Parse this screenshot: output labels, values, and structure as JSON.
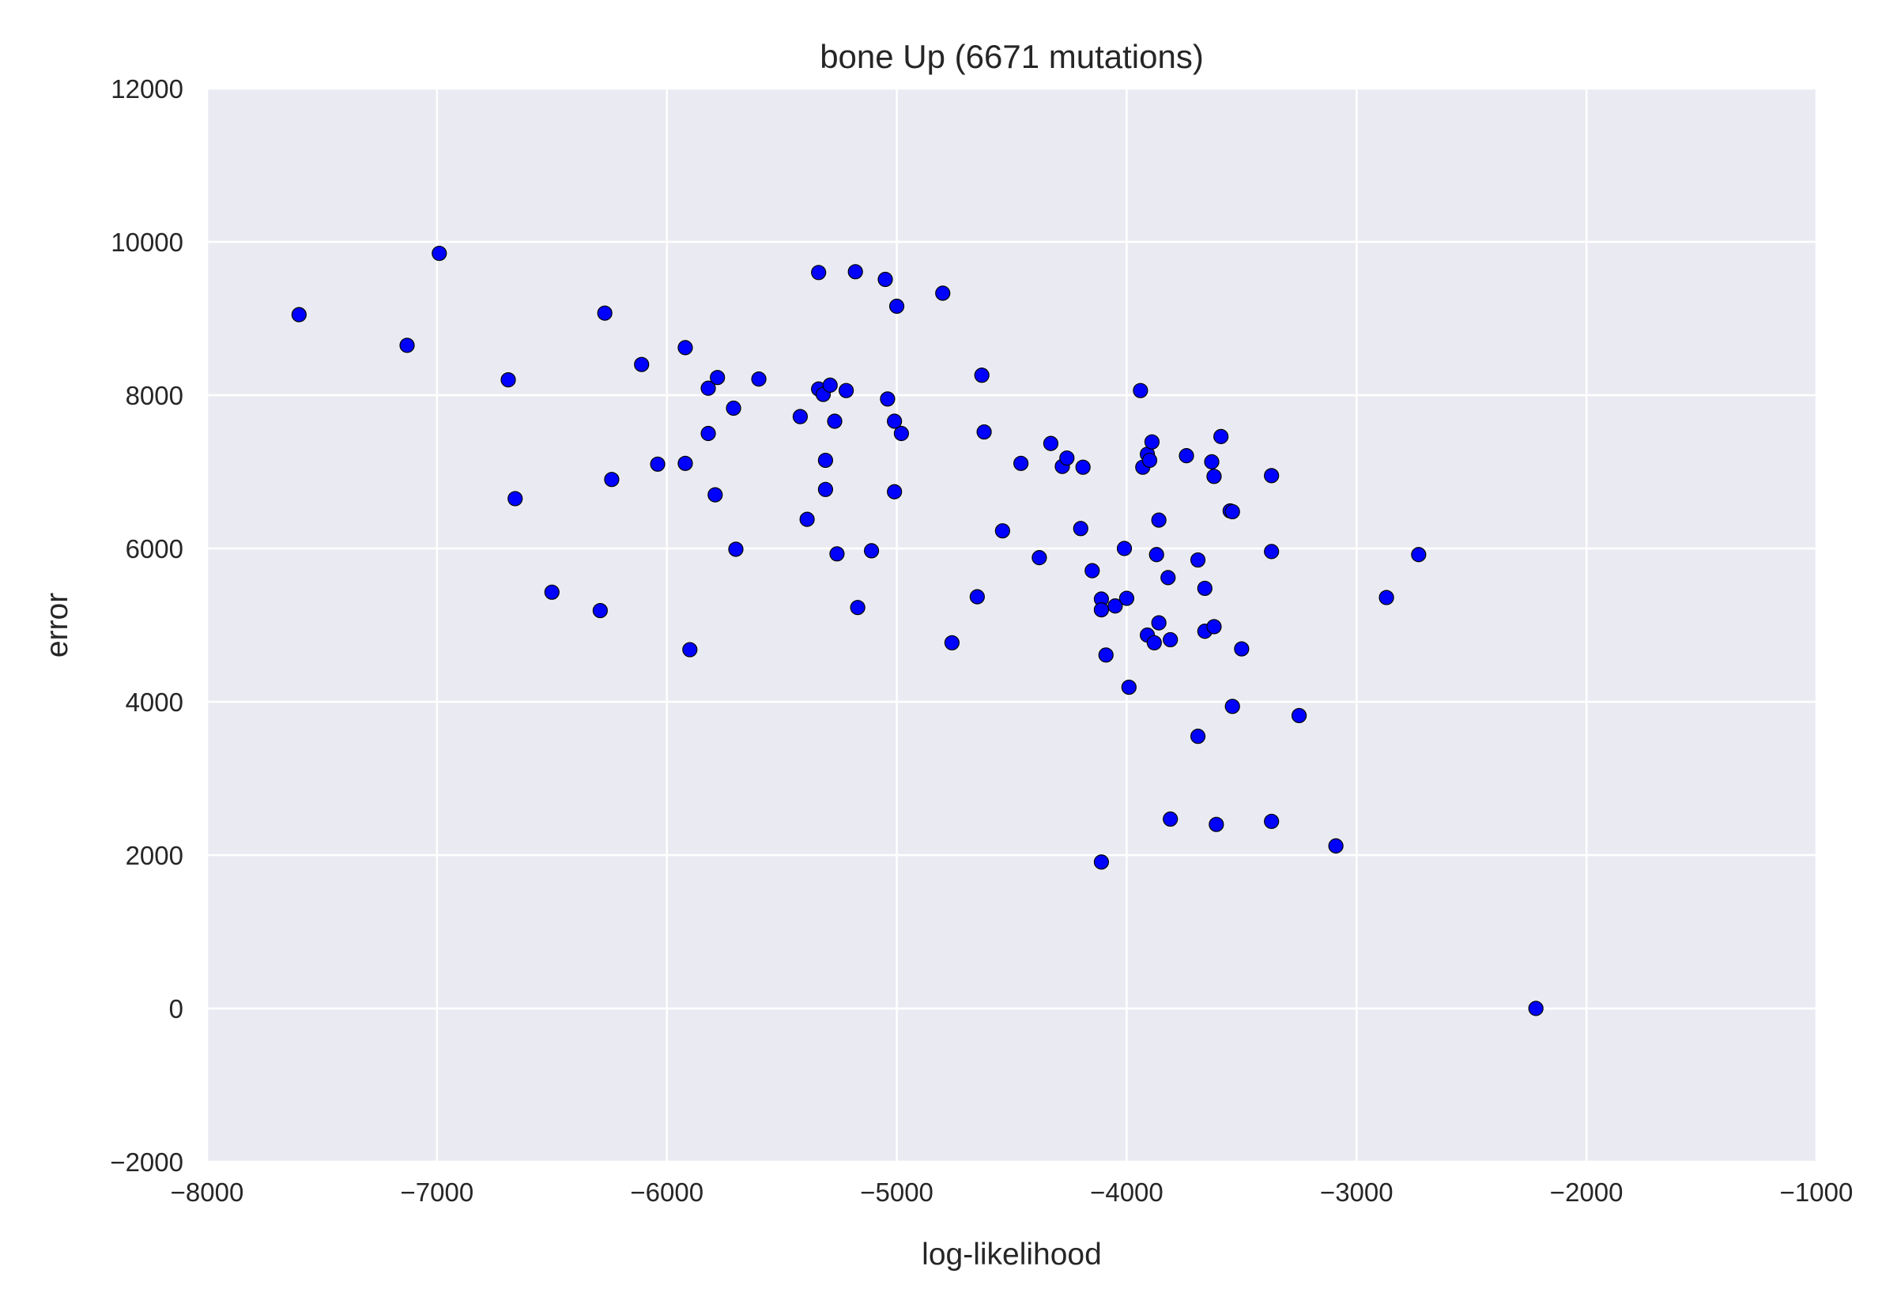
{
  "chart_data": {
    "type": "scatter",
    "title": "bone Up (6671 mutations)",
    "xlabel": "log-likelihood",
    "ylabel": "error",
    "xlim": [
      -8000,
      -1000
    ],
    "ylim": [
      -2000,
      12000
    ],
    "xticks": [
      -8000,
      -7000,
      -6000,
      -5000,
      -4000,
      -3000,
      -2000,
      -1000
    ],
    "yticks": [
      -2000,
      0,
      2000,
      4000,
      6000,
      8000,
      10000,
      12000
    ],
    "xtick_labels": [
      "−8000",
      "−7000",
      "−6000",
      "−5000",
      "−4000",
      "−3000",
      "−2000",
      "−1000"
    ],
    "ytick_labels": [
      "−2000",
      "0",
      "2000",
      "4000",
      "6000",
      "8000",
      "10000",
      "12000"
    ],
    "grid": true,
    "background_color": "#eaeaf2",
    "marker_color": "#0000ff",
    "points": [
      {
        "x": -7600,
        "y": 9050
      },
      {
        "x": -7130,
        "y": 8650
      },
      {
        "x": -6990,
        "y": 9850
      },
      {
        "x": -6690,
        "y": 8200
      },
      {
        "x": -6660,
        "y": 6650
      },
      {
        "x": -6500,
        "y": 5430
      },
      {
        "x": -6290,
        "y": 5190
      },
      {
        "x": -6270,
        "y": 9070
      },
      {
        "x": -6240,
        "y": 6900
      },
      {
        "x": -6110,
        "y": 8400
      },
      {
        "x": -6040,
        "y": 7100
      },
      {
        "x": -5920,
        "y": 8620
      },
      {
        "x": -5920,
        "y": 7110
      },
      {
        "x": -5900,
        "y": 4680
      },
      {
        "x": -5820,
        "y": 8090
      },
      {
        "x": -5820,
        "y": 7500
      },
      {
        "x": -5790,
        "y": 6700
      },
      {
        "x": -5780,
        "y": 8230
      },
      {
        "x": -5710,
        "y": 7830
      },
      {
        "x": -5700,
        "y": 5990
      },
      {
        "x": -5600,
        "y": 8210
      },
      {
        "x": -5420,
        "y": 7720
      },
      {
        "x": -5390,
        "y": 6380
      },
      {
        "x": -5340,
        "y": 9600
      },
      {
        "x": -5340,
        "y": 8080
      },
      {
        "x": -5320,
        "y": 8010
      },
      {
        "x": -5310,
        "y": 7150
      },
      {
        "x": -5310,
        "y": 6770
      },
      {
        "x": -5290,
        "y": 8130
      },
      {
        "x": -5270,
        "y": 7660
      },
      {
        "x": -5260,
        "y": 5930
      },
      {
        "x": -5220,
        "y": 8060
      },
      {
        "x": -5180,
        "y": 9610
      },
      {
        "x": -5170,
        "y": 5230
      },
      {
        "x": -5110,
        "y": 5970
      },
      {
        "x": -5050,
        "y": 9510
      },
      {
        "x": -5040,
        "y": 7950
      },
      {
        "x": -5010,
        "y": 7660
      },
      {
        "x": -5010,
        "y": 6740
      },
      {
        "x": -5000,
        "y": 9160
      },
      {
        "x": -4980,
        "y": 7500
      },
      {
        "x": -4800,
        "y": 9330
      },
      {
        "x": -4760,
        "y": 4770
      },
      {
        "x": -4650,
        "y": 5370
      },
      {
        "x": -4630,
        "y": 8260
      },
      {
        "x": -4620,
        "y": 7520
      },
      {
        "x": -4540,
        "y": 6230
      },
      {
        "x": -4460,
        "y": 7110
      },
      {
        "x": -4380,
        "y": 5880
      },
      {
        "x": -4330,
        "y": 7370
      },
      {
        "x": -4280,
        "y": 7070
      },
      {
        "x": -4260,
        "y": 7180
      },
      {
        "x": -4200,
        "y": 6260
      },
      {
        "x": -4190,
        "y": 7060
      },
      {
        "x": -4150,
        "y": 5710
      },
      {
        "x": -4110,
        "y": 5340
      },
      {
        "x": -4110,
        "y": 5200
      },
      {
        "x": -4110,
        "y": 1910
      },
      {
        "x": -4090,
        "y": 4610
      },
      {
        "x": -4050,
        "y": 5250
      },
      {
        "x": -4010,
        "y": 6000
      },
      {
        "x": -4000,
        "y": 5350
      },
      {
        "x": -3990,
        "y": 4190
      },
      {
        "x": -3940,
        "y": 8060
      },
      {
        "x": -3930,
        "y": 7060
      },
      {
        "x": -3910,
        "y": 7230
      },
      {
        "x": -3910,
        "y": 4870
      },
      {
        "x": -3900,
        "y": 7150
      },
      {
        "x": -3890,
        "y": 7390
      },
      {
        "x": -3880,
        "y": 4770
      },
      {
        "x": -3870,
        "y": 5920
      },
      {
        "x": -3860,
        "y": 6370
      },
      {
        "x": -3860,
        "y": 5030
      },
      {
        "x": -3820,
        "y": 5620
      },
      {
        "x": -3810,
        "y": 4810
      },
      {
        "x": -3810,
        "y": 2470
      },
      {
        "x": -3740,
        "y": 7210
      },
      {
        "x": -3690,
        "y": 5850
      },
      {
        "x": -3690,
        "y": 3550
      },
      {
        "x": -3660,
        "y": 5480
      },
      {
        "x": -3660,
        "y": 4920
      },
      {
        "x": -3630,
        "y": 7130
      },
      {
        "x": -3620,
        "y": 6940
      },
      {
        "x": -3620,
        "y": 4980
      },
      {
        "x": -3610,
        "y": 2400
      },
      {
        "x": -3590,
        "y": 7460
      },
      {
        "x": -3550,
        "y": 6490
      },
      {
        "x": -3540,
        "y": 6480
      },
      {
        "x": -3540,
        "y": 3940
      },
      {
        "x": -3500,
        "y": 4690
      },
      {
        "x": -3370,
        "y": 6950
      },
      {
        "x": -3370,
        "y": 5960
      },
      {
        "x": -3370,
        "y": 2440
      },
      {
        "x": -3250,
        "y": 3820
      },
      {
        "x": -3090,
        "y": 2120
      },
      {
        "x": -2870,
        "y": 5360
      },
      {
        "x": -2730,
        "y": 5920
      },
      {
        "x": -2220,
        "y": 0
      }
    ]
  }
}
